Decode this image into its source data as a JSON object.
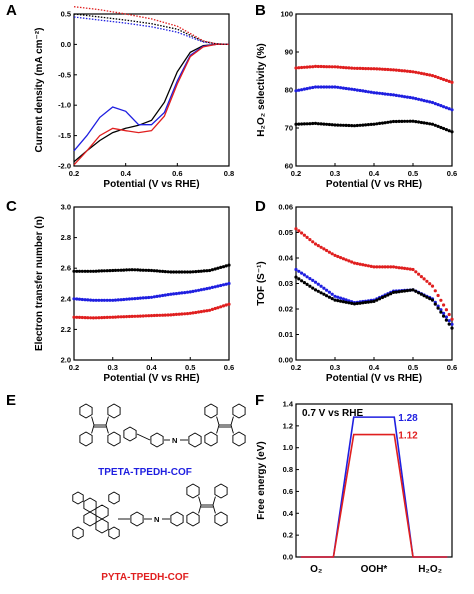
{
  "panels": [
    "A",
    "B",
    "C",
    "D",
    "E",
    "F"
  ],
  "colors": {
    "black": "#000000",
    "blue": "#1f1fe0",
    "red": "#e01f1f"
  },
  "chart_data": [
    {
      "panel": "A",
      "type": "line",
      "xlabel": "Potential (V vs RHE)",
      "ylabel": "Current density (mA cm⁻²)",
      "xlim": [
        0.2,
        0.8
      ],
      "ylim": [
        -2.0,
        0.5
      ],
      "xticks": [
        "0.2",
        "0.4",
        "0.6",
        "0.8"
      ],
      "yticks": [
        "-2.0",
        "-1.5",
        "-1.0",
        "-0.5",
        "0.0",
        "0.5"
      ],
      "series": [
        {
          "color": "#000000",
          "style": "solid",
          "points": [
            [
              0.2,
              -1.93
            ],
            [
              0.25,
              -1.75
            ],
            [
              0.3,
              -1.58
            ],
            [
              0.35,
              -1.45
            ],
            [
              0.4,
              -1.38
            ],
            [
              0.45,
              -1.33
            ],
            [
              0.5,
              -1.25
            ],
            [
              0.55,
              -0.95
            ],
            [
              0.6,
              -0.45
            ],
            [
              0.65,
              -0.13
            ],
            [
              0.7,
              -0.02
            ],
            [
              0.75,
              0.0
            ],
            [
              0.8,
              0.0
            ]
          ]
        },
        {
          "color": "#1f1fe0",
          "style": "solid",
          "points": [
            [
              0.2,
              -1.75
            ],
            [
              0.25,
              -1.5
            ],
            [
              0.3,
              -1.2
            ],
            [
              0.35,
              -1.03
            ],
            [
              0.4,
              -1.1
            ],
            [
              0.45,
              -1.32
            ],
            [
              0.5,
              -1.32
            ],
            [
              0.55,
              -1.12
            ],
            [
              0.6,
              -0.6
            ],
            [
              0.65,
              -0.18
            ],
            [
              0.7,
              -0.03
            ],
            [
              0.75,
              0.0
            ],
            [
              0.8,
              0.0
            ]
          ]
        },
        {
          "color": "#e01f1f",
          "style": "solid",
          "points": [
            [
              0.2,
              -1.98
            ],
            [
              0.25,
              -1.75
            ],
            [
              0.3,
              -1.5
            ],
            [
              0.35,
              -1.38
            ],
            [
              0.4,
              -1.42
            ],
            [
              0.45,
              -1.45
            ],
            [
              0.5,
              -1.42
            ],
            [
              0.55,
              -1.18
            ],
            [
              0.6,
              -0.65
            ],
            [
              0.65,
              -0.2
            ],
            [
              0.7,
              -0.04
            ],
            [
              0.75,
              0.0
            ],
            [
              0.8,
              0.0
            ]
          ]
        },
        {
          "color": "#000000",
          "style": "dotted",
          "points": [
            [
              0.2,
              0.5
            ],
            [
              0.3,
              0.45
            ],
            [
              0.4,
              0.4
            ],
            [
              0.5,
              0.34
            ],
            [
              0.6,
              0.25
            ],
            [
              0.65,
              0.15
            ],
            [
              0.7,
              0.05
            ],
            [
              0.75,
              0.01
            ],
            [
              0.8,
              0.0
            ]
          ]
        },
        {
          "color": "#1f1fe0",
          "style": "dotted",
          "points": [
            [
              0.2,
              0.45
            ],
            [
              0.3,
              0.4
            ],
            [
              0.4,
              0.35
            ],
            [
              0.5,
              0.29
            ],
            [
              0.6,
              0.2
            ],
            [
              0.65,
              0.12
            ],
            [
              0.7,
              0.04
            ],
            [
              0.75,
              0.01
            ],
            [
              0.8,
              0.0
            ]
          ]
        },
        {
          "color": "#e01f1f",
          "style": "dotted",
          "points": [
            [
              0.2,
              0.62
            ],
            [
              0.3,
              0.57
            ],
            [
              0.4,
              0.5
            ],
            [
              0.5,
              0.42
            ],
            [
              0.6,
              0.3
            ],
            [
              0.65,
              0.18
            ],
            [
              0.7,
              0.06
            ],
            [
              0.75,
              0.01
            ],
            [
              0.8,
              0.0
            ]
          ]
        }
      ]
    },
    {
      "panel": "B",
      "type": "scatter",
      "xlabel": "Potential (V vs RHE)",
      "ylabel": "H₂O₂ selectivity (%)",
      "xlim": [
        0.2,
        0.6
      ],
      "ylim": [
        60,
        100
      ],
      "xticks": [
        "0.2",
        "0.3",
        "0.4",
        "0.5",
        "0.6"
      ],
      "yticks": [
        "60",
        "70",
        "80",
        "90",
        "100"
      ],
      "series": [
        {
          "color": "#e01f1f",
          "points": [
            [
              0.2,
              85.8
            ],
            [
              0.25,
              86.2
            ],
            [
              0.3,
              86.1
            ],
            [
              0.35,
              85.7
            ],
            [
              0.4,
              85.6
            ],
            [
              0.45,
              85.3
            ],
            [
              0.5,
              84.8
            ],
            [
              0.55,
              83.8
            ],
            [
              0.6,
              82.0
            ]
          ]
        },
        {
          "color": "#1f1fe0",
          "points": [
            [
              0.2,
              79.8
            ],
            [
              0.25,
              80.8
            ],
            [
              0.3,
              80.8
            ],
            [
              0.35,
              80.1
            ],
            [
              0.4,
              79.3
            ],
            [
              0.45,
              78.7
            ],
            [
              0.5,
              77.9
            ],
            [
              0.55,
              76.7
            ],
            [
              0.6,
              74.8
            ]
          ]
        },
        {
          "color": "#000000",
          "points": [
            [
              0.2,
              71.0
            ],
            [
              0.25,
              71.2
            ],
            [
              0.3,
              70.8
            ],
            [
              0.35,
              70.6
            ],
            [
              0.4,
              71.0
            ],
            [
              0.45,
              71.7
            ],
            [
              0.5,
              71.8
            ],
            [
              0.55,
              71.0
            ],
            [
              0.6,
              69.0
            ]
          ]
        }
      ]
    },
    {
      "panel": "C",
      "type": "scatter",
      "xlabel": "Potential (V vs RHE)",
      "ylabel": "Electron transfer number (n)",
      "xlim": [
        0.2,
        0.6
      ],
      "ylim": [
        2.0,
        3.0
      ],
      "xticks": [
        "0.2",
        "0.3",
        "0.4",
        "0.5",
        "0.6"
      ],
      "yticks": [
        "2.0",
        "2.2",
        "2.4",
        "2.6",
        "2.8",
        "3.0"
      ],
      "series": [
        {
          "color": "#000000",
          "points": [
            [
              0.2,
              2.58
            ],
            [
              0.25,
              2.58
            ],
            [
              0.3,
              2.585
            ],
            [
              0.35,
              2.59
            ],
            [
              0.4,
              2.585
            ],
            [
              0.45,
              2.575
            ],
            [
              0.5,
              2.575
            ],
            [
              0.55,
              2.585
            ],
            [
              0.6,
              2.62
            ]
          ]
        },
        {
          "color": "#1f1fe0",
          "points": [
            [
              0.2,
              2.4
            ],
            [
              0.25,
              2.39
            ],
            [
              0.3,
              2.39
            ],
            [
              0.35,
              2.4
            ],
            [
              0.4,
              2.41
            ],
            [
              0.45,
              2.43
            ],
            [
              0.5,
              2.445
            ],
            [
              0.55,
              2.47
            ],
            [
              0.6,
              2.5
            ]
          ]
        },
        {
          "color": "#e01f1f",
          "points": [
            [
              0.2,
              2.28
            ],
            [
              0.25,
              2.275
            ],
            [
              0.3,
              2.28
            ],
            [
              0.35,
              2.285
            ],
            [
              0.4,
              2.29
            ],
            [
              0.45,
              2.295
            ],
            [
              0.5,
              2.305
            ],
            [
              0.55,
              2.325
            ],
            [
              0.6,
              2.365
            ]
          ]
        }
      ]
    },
    {
      "panel": "D",
      "type": "scatter",
      "xlabel": "Potential (V vs RHE)",
      "ylabel": "TOF (S⁻¹)",
      "xlim": [
        0.2,
        0.6
      ],
      "ylim": [
        0.0,
        0.06
      ],
      "xticks": [
        "0.2",
        "0.3",
        "0.4",
        "0.5",
        "0.6"
      ],
      "yticks": [
        "0.00",
        "0.01",
        "0.02",
        "0.03",
        "0.04",
        "0.05",
        "0.06"
      ],
      "series": [
        {
          "color": "#e01f1f",
          "points": [
            [
              0.2,
              0.0515
            ],
            [
              0.25,
              0.0455
            ],
            [
              0.3,
              0.041
            ],
            [
              0.35,
              0.038
            ],
            [
              0.4,
              0.0365
            ],
            [
              0.45,
              0.0365
            ],
            [
              0.5,
              0.0355
            ],
            [
              0.55,
              0.029
            ],
            [
              0.6,
              0.016
            ]
          ]
        },
        {
          "color": "#1f1fe0",
          "points": [
            [
              0.2,
              0.0355
            ],
            [
              0.25,
              0.0305
            ],
            [
              0.3,
              0.025
            ],
            [
              0.35,
              0.0225
            ],
            [
              0.4,
              0.0235
            ],
            [
              0.45,
              0.027
            ],
            [
              0.5,
              0.0275
            ],
            [
              0.55,
              0.024
            ],
            [
              0.6,
              0.014
            ]
          ]
        },
        {
          "color": "#000000",
          "points": [
            [
              0.2,
              0.0325
            ],
            [
              0.25,
              0.0275
            ],
            [
              0.3,
              0.0235
            ],
            [
              0.35,
              0.022
            ],
            [
              0.4,
              0.023
            ],
            [
              0.45,
              0.0265
            ],
            [
              0.5,
              0.0275
            ],
            [
              0.55,
              0.0235
            ],
            [
              0.6,
              0.0125
            ]
          ]
        }
      ]
    },
    {
      "panel": "F",
      "type": "line",
      "ylabel": "Free energy (eV)",
      "ylim": [
        0.0,
        1.4
      ],
      "yticks": [
        "0.0",
        "0.2",
        "0.4",
        "0.6",
        "0.8",
        "1.0",
        "1.2",
        "1.4"
      ],
      "categories": [
        "O₂",
        "OOH*",
        "H₂O₂"
      ],
      "annotation": "0.7 V vs RHE",
      "series": [
        {
          "color": "#1f1fe0",
          "values": [
            0.0,
            1.28,
            0.0
          ],
          "label": "1.28"
        },
        {
          "color": "#e01f1f",
          "values": [
            0.0,
            1.12,
            0.0
          ],
          "label": "1.12"
        }
      ]
    }
  ],
  "molecules": [
    {
      "label": "TPETA-TPEDH-COF",
      "color": "#1f1fe0"
    },
    {
      "label": "PYTA-TPEDH-COF",
      "color": "#e01f1f"
    }
  ]
}
